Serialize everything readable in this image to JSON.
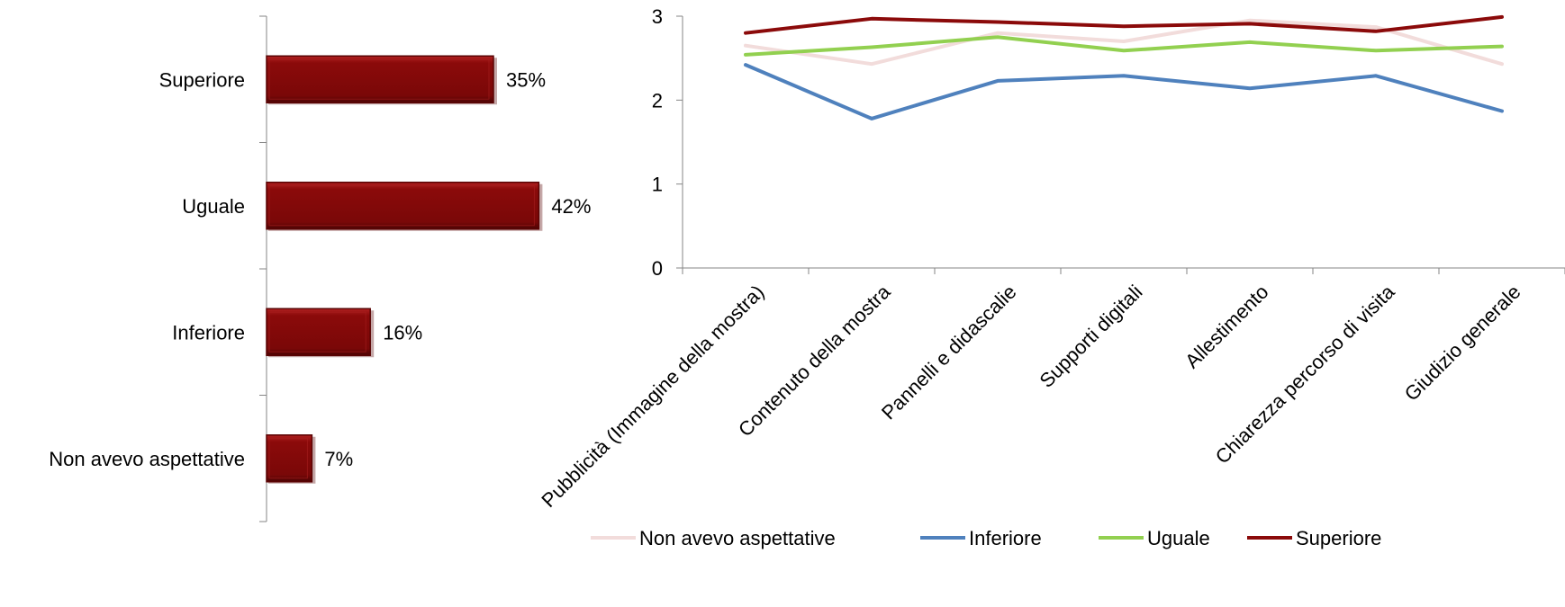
{
  "chart_data": [
    {
      "type": "bar",
      "orientation": "horizontal",
      "categories": [
        "Superiore",
        "Uguale",
        "Inferiore",
        "Non avevo aspettative"
      ],
      "values": [
        35,
        42,
        16,
        7
      ],
      "value_labels": [
        "35%",
        "42%",
        "16%",
        "7%"
      ],
      "xlim": [
        0,
        100
      ],
      "bar_color": "#8B0A0A",
      "title": "",
      "xlabel": "",
      "ylabel": ""
    },
    {
      "type": "line",
      "categories": [
        "Pubblicità (Immagine della mostra)",
        "Contenuto della mostra",
        "Pannelli e didascalie",
        "Supporti digitali",
        "Allestimento",
        "Chiarezza percorso di visita",
        "Giudizio generale"
      ],
      "ylim": [
        0,
        3
      ],
      "yticks": [
        0,
        1,
        2,
        3
      ],
      "ytick_labels": [
        "0",
        "1",
        "2",
        "3"
      ],
      "grid": false,
      "legend_position": "bottom",
      "series": [
        {
          "name": "Non avevo aspettative",
          "color": "#F2DCDB",
          "values": [
            2.65,
            2.43,
            2.8,
            2.7,
            2.95,
            2.87,
            2.43
          ]
        },
        {
          "name": "Inferiore",
          "color": "#4F81BD",
          "values": [
            2.42,
            1.78,
            2.23,
            2.29,
            2.14,
            2.29,
            1.87
          ]
        },
        {
          "name": "Uguale",
          "color": "#92D050",
          "values": [
            2.54,
            2.63,
            2.75,
            2.59,
            2.69,
            2.59,
            2.64
          ]
        },
        {
          "name": "Superiore",
          "color": "#8B0A0A",
          "values": [
            2.8,
            2.97,
            2.93,
            2.88,
            2.91,
            2.82,
            2.99
          ]
        }
      ],
      "title": "",
      "xlabel": "",
      "ylabel": ""
    }
  ]
}
